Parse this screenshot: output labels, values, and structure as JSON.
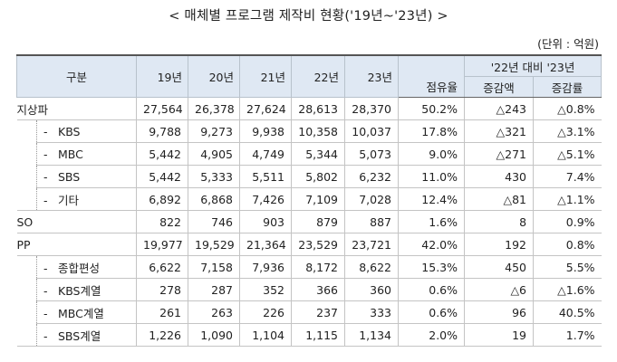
{
  "title": "< 매체별 프로그램 제작비 현황('19년~'23년) >",
  "unit": "(단위 : 억원)",
  "headers": {
    "gubun": "구분",
    "years": [
      "19년",
      "20년",
      "21년",
      "22년",
      "23년"
    ],
    "compare_group": "'22년 대비 '23년",
    "share": "점유율",
    "change_amount": "증감액",
    "change_rate": "증감률"
  },
  "rows": [
    {
      "label": "지상파",
      "level": 0,
      "values": [
        "27,564",
        "26,378",
        "27,624",
        "28,613",
        "28,370"
      ],
      "share": "50.2%",
      "diff": "△243",
      "rate": "△0.8%"
    },
    {
      "label": "KBS",
      "level": 1,
      "values": [
        "9,788",
        "9,273",
        "9,938",
        "10,358",
        "10,037"
      ],
      "share": "17.8%",
      "diff": "△321",
      "rate": "△3.1%"
    },
    {
      "label": "MBC",
      "level": 1,
      "values": [
        "5,442",
        "4,905",
        "4,749",
        "5,344",
        "5,073"
      ],
      "share": "9.0%",
      "diff": "△271",
      "rate": "△5.1%"
    },
    {
      "label": "SBS",
      "level": 1,
      "values": [
        "5,442",
        "5,333",
        "5,511",
        "5,802",
        "6,232"
      ],
      "share": "11.0%",
      "diff": "430",
      "rate": "7.4%"
    },
    {
      "label": "기타",
      "level": 1,
      "values": [
        "6,892",
        "6,868",
        "7,426",
        "7,109",
        "7,028"
      ],
      "share": "12.4%",
      "diff": "△81",
      "rate": "△1.1%"
    },
    {
      "label": "SO",
      "level": 0,
      "values": [
        "822",
        "746",
        "903",
        "879",
        "887"
      ],
      "share": "1.6%",
      "diff": "8",
      "rate": "0.9%"
    },
    {
      "label": "PP",
      "level": 0,
      "values": [
        "19,977",
        "19,529",
        "21,364",
        "23,529",
        "23,721"
      ],
      "share": "42.0%",
      "diff": "192",
      "rate": "0.8%"
    },
    {
      "label": "종합편성",
      "level": 1,
      "values": [
        "6,622",
        "7,158",
        "7,936",
        "8,172",
        "8,622"
      ],
      "share": "15.3%",
      "diff": "450",
      "rate": "5.5%"
    },
    {
      "label": "KBS계열",
      "level": 1,
      "values": [
        "278",
        "287",
        "352",
        "366",
        "360"
      ],
      "share": "0.6%",
      "diff": "△6",
      "rate": "△1.6%"
    },
    {
      "label": "MBC계열",
      "level": 1,
      "values": [
        "261",
        "263",
        "226",
        "237",
        "333"
      ],
      "share": "0.6%",
      "diff": "96",
      "rate": "40.5%"
    },
    {
      "label": "SBS계열",
      "level": 1,
      "values": [
        "1,226",
        "1,090",
        "1,104",
        "1,115",
        "1,134"
      ],
      "share": "2.0%",
      "diff": "19",
      "rate": "1.7%"
    }
  ]
}
